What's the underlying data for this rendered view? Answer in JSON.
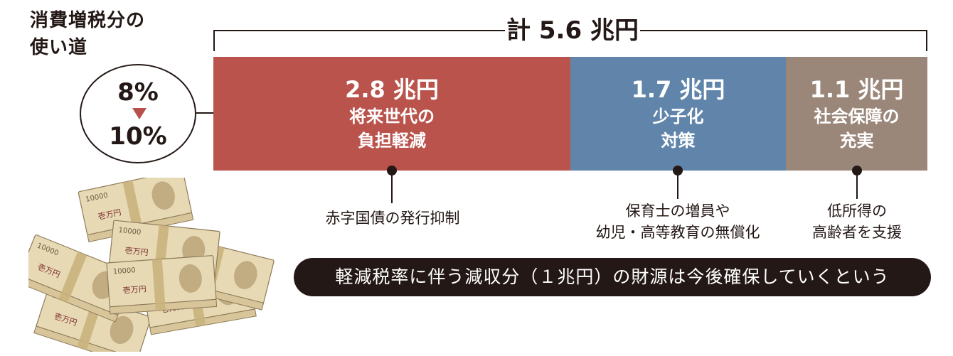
{
  "title": {
    "line1": "消費増税分の",
    "line2": "使い道"
  },
  "rate_change": {
    "from": "8%",
    "to": "10%"
  },
  "total": "計 5.6 兆円",
  "segments": [
    {
      "amount": "2.8 兆円",
      "label_line1": "将来世代の",
      "label_line2": "負担軽減",
      "value_trillion_yen": 2.8,
      "color": "#b9534c"
    },
    {
      "amount": "1.7 兆円",
      "label_line1": "少子化",
      "label_line2": "対策",
      "value_trillion_yen": 1.7,
      "color": "#6185aa"
    },
    {
      "amount": "1.1 兆円",
      "label_line1": "社会保障の",
      "label_line2": "充実",
      "value_trillion_yen": 1.1,
      "color": "#9b877a"
    }
  ],
  "notes": [
    {
      "line1": "赤字国債の発行抑制"
    },
    {
      "line1": "保育士の増員や",
      "line2": "幼児・高等教育の無償化"
    },
    {
      "line1": "低所得の",
      "line2": "高齢者を支援"
    }
  ],
  "banner": "軽減税率に伴う減収分（１兆円）の財源は今後確保していくという",
  "colors": {
    "arrow": "#b7504a",
    "text": "#231815",
    "banner_bg": "#231815"
  },
  "illustration": {
    "name": "banknote-stacks",
    "bill_text": "10000",
    "bill_label": "壱万円"
  }
}
